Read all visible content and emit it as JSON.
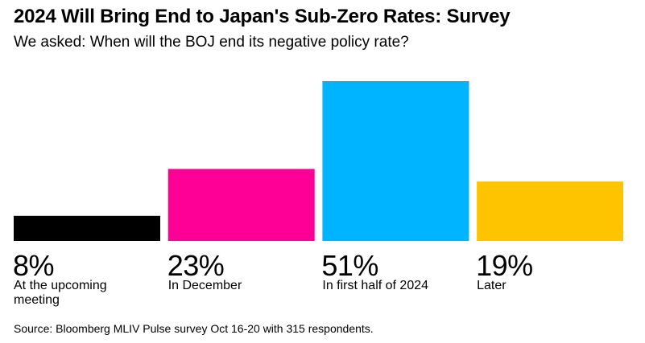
{
  "header": {
    "title": "2024 Will Bring End to Japan's Sub-Zero Rates: Survey",
    "subtitle": "We asked: When will the BOJ end its negative policy rate?"
  },
  "chart_data": {
    "type": "bar",
    "title": "2024 Will Bring End to Japan's Sub-Zero Rates: Survey",
    "subtitle": "We asked: When will the BOJ end its negative policy rate?",
    "categories": [
      "At the upcoming meeting",
      "In December",
      "In first half of 2024",
      "Later"
    ],
    "values": [
      8,
      23,
      51,
      19
    ],
    "value_labels": [
      "8%",
      "23%",
      "51%",
      "19%"
    ],
    "unit": "%",
    "colors": [
      "#000000",
      "#ff0096",
      "#00b4ff",
      "#ffc400"
    ],
    "ylim": [
      0,
      51
    ],
    "grid": false,
    "legend": "none"
  },
  "footer": {
    "source": "Source: Bloomberg MLIV Pulse survey Oct 16-20 with 315 respondents."
  }
}
